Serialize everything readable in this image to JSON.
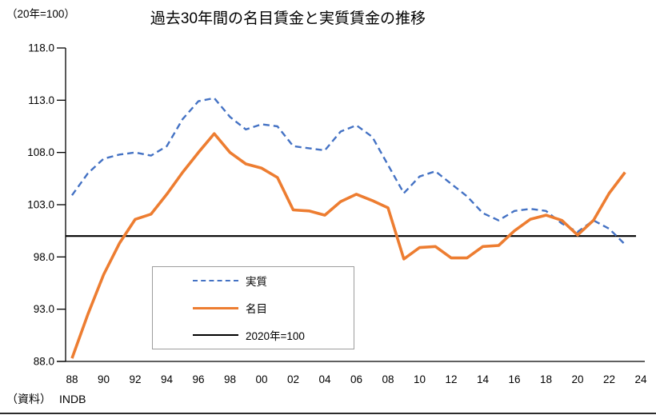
{
  "chart_data": {
    "type": "line",
    "title": "過去30年間の名目賃金と実質賃金の推移",
    "unit_note": "（20年=100）",
    "source_prefix": "（資料）",
    "source_name": "INDB",
    "grid": false,
    "legend_position": "inside-bottom-left-box",
    "ylim": [
      88.0,
      118.0
    ],
    "y_tick_values": [
      88,
      93,
      98,
      103,
      108,
      113,
      118
    ],
    "y_tick_labels": [
      "88.0",
      "93.0",
      "98.0",
      "103.0",
      "108.0",
      "113.0",
      "118.0"
    ],
    "x_tick_years": [
      1988,
      1990,
      1992,
      1994,
      1996,
      1998,
      2000,
      2002,
      2004,
      2006,
      2008,
      2010,
      2012,
      2014,
      2016,
      2018,
      2020,
      2022,
      2024
    ],
    "x_tick_labels": [
      "88",
      "90",
      "92",
      "94",
      "96",
      "98",
      "00",
      "02",
      "04",
      "06",
      "08",
      "10",
      "12",
      "14",
      "16",
      "18",
      "20",
      "22",
      "24"
    ],
    "xlim_years": [
      1988,
      2024
    ],
    "years": [
      1988,
      1989,
      1990,
      1991,
      1992,
      1993,
      1994,
      1995,
      1996,
      1997,
      1998,
      1999,
      2000,
      2001,
      2002,
      2003,
      2004,
      2005,
      2006,
      2007,
      2008,
      2009,
      2010,
      2011,
      2012,
      2013,
      2014,
      2015,
      2016,
      2017,
      2018,
      2019,
      2020,
      2021,
      2022,
      2023
    ],
    "series": [
      {
        "name": "実質",
        "type": "line",
        "style": "dashed",
        "color": "#4472C4",
        "values": [
          103.9,
          106.0,
          107.4,
          107.8,
          108.0,
          107.7,
          108.6,
          111.2,
          112.9,
          113.2,
          111.4,
          110.2,
          110.7,
          110.5,
          108.6,
          108.4,
          108.2,
          110.0,
          110.6,
          109.5,
          106.8,
          104.1,
          105.7,
          106.2,
          105.0,
          103.8,
          102.2,
          101.5,
          102.4,
          102.6,
          102.4,
          101.2,
          100.4,
          101.5,
          100.7,
          99.2
        ]
      },
      {
        "name": "名目",
        "type": "line",
        "style": "solid",
        "color": "#ED7D31",
        "values": [
          88.3,
          92.5,
          96.3,
          99.3,
          101.6,
          102.1,
          104.0,
          106.1,
          108.0,
          109.8,
          108.0,
          106.9,
          106.5,
          105.6,
          102.5,
          102.4,
          102.0,
          103.3,
          104.0,
          103.4,
          102.7,
          97.8,
          98.9,
          99.0,
          97.9,
          97.9,
          99.0,
          99.1,
          100.5,
          101.6,
          102.0,
          101.5,
          100.1,
          101.5,
          104.1,
          106.1
        ]
      },
      {
        "name": "2020年=100",
        "type": "reference-line",
        "style": "solid",
        "color": "#000000",
        "value": 100
      }
    ]
  }
}
